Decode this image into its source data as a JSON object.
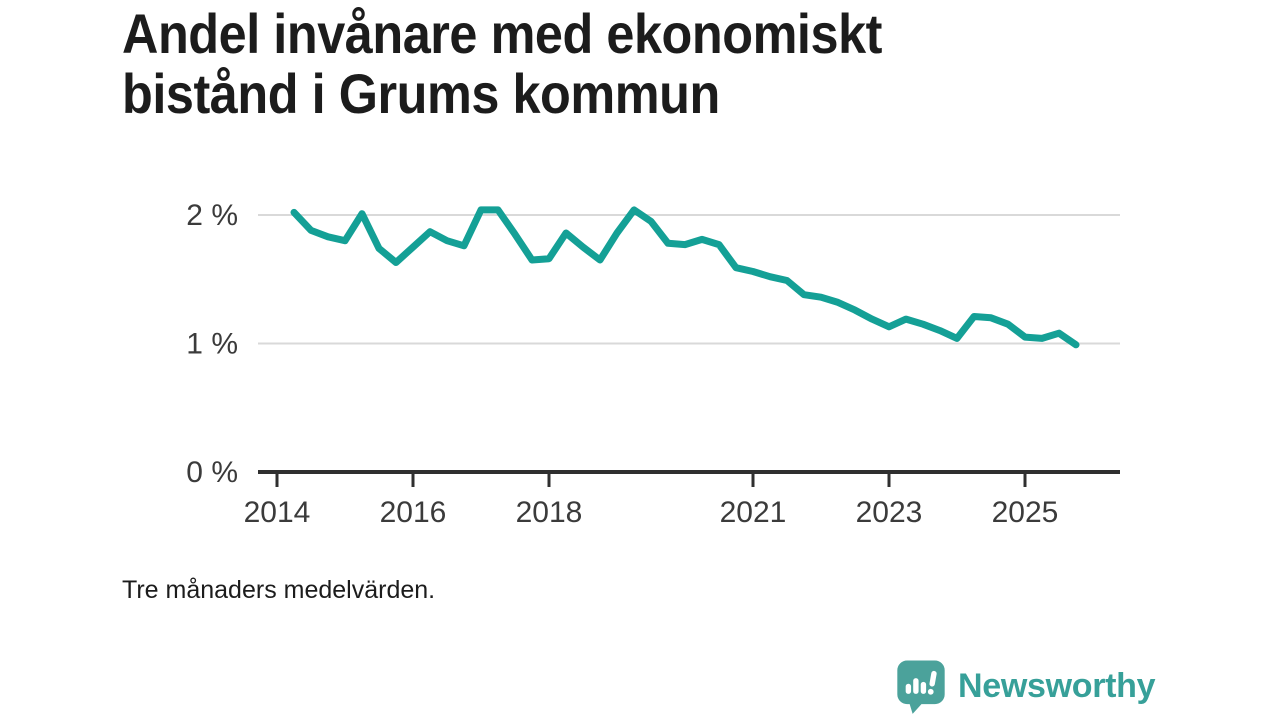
{
  "header": {
    "title_line1": "Andel invånare med ekonomiskt",
    "title_line2": "bistånd i Grums kommun"
  },
  "footnote": "Tre månaders medelvärden.",
  "branding": {
    "name": "Newsworthy",
    "icon": "newsworthy-bubble-chart-icon",
    "icon_color": "#4ba29b",
    "text_color": "#37a099"
  },
  "chart_data": {
    "type": "line",
    "title": "Andel invånare med ekonomiskt bistånd i Grums kommun",
    "subtitle": "Tre månaders medelvärden.",
    "xlabel": "",
    "ylabel": "",
    "x_range": [
      2013.7,
      2026.4
    ],
    "ylim": [
      0,
      2.2
    ],
    "grid": "horizontal",
    "legend": "none",
    "colors": {
      "line": "#14a096",
      "gridline": "#d9d9d9",
      "axis": "#2f2f2f",
      "tick_label": "#3b3b3b"
    },
    "y_ticks": [
      {
        "label": "2 %",
        "value": 2
      },
      {
        "label": "1 %",
        "value": 1
      },
      {
        "label": "0 %",
        "value": 0
      }
    ],
    "x_ticks": [
      {
        "label": "2014",
        "value": 2014
      },
      {
        "label": "2016",
        "value": 2016
      },
      {
        "label": "2018",
        "value": 2018
      },
      {
        "label": "2021",
        "value": 2021
      },
      {
        "label": "2023",
        "value": 2023
      },
      {
        "label": "2025",
        "value": 2025
      }
    ],
    "series": [
      {
        "name": "Andel invånare med ekonomiskt bistånd",
        "unit": "%",
        "x": [
          2014.25,
          2014.5,
          2014.75,
          2015.0,
          2015.25,
          2015.5,
          2015.75,
          2016.0,
          2016.25,
          2016.5,
          2016.75,
          2017.0,
          2017.25,
          2017.5,
          2017.75,
          2018.0,
          2018.25,
          2018.5,
          2018.75,
          2019.0,
          2019.25,
          2019.5,
          2019.75,
          2020.0,
          2020.25,
          2020.5,
          2020.75,
          2021.0,
          2021.25,
          2021.5,
          2021.75,
          2022.0,
          2022.25,
          2022.5,
          2022.75,
          2023.0,
          2023.25,
          2023.5,
          2023.75,
          2024.0,
          2024.25,
          2024.5,
          2024.75,
          2025.0,
          2025.25,
          2025.5,
          2025.75
        ],
        "y": [
          2.02,
          1.88,
          1.83,
          1.8,
          2.01,
          1.74,
          1.63,
          1.75,
          1.87,
          1.8,
          1.76,
          2.04,
          2.04,
          1.85,
          1.65,
          1.66,
          1.86,
          1.75,
          1.65,
          1.86,
          2.04,
          1.95,
          1.78,
          1.77,
          1.81,
          1.77,
          1.59,
          1.56,
          1.52,
          1.49,
          1.38,
          1.36,
          1.32,
          1.26,
          1.19,
          1.13,
          1.19,
          1.15,
          1.1,
          1.04,
          1.21,
          1.2,
          1.15,
          1.05,
          1.04,
          1.08,
          0.99
        ]
      }
    ]
  }
}
